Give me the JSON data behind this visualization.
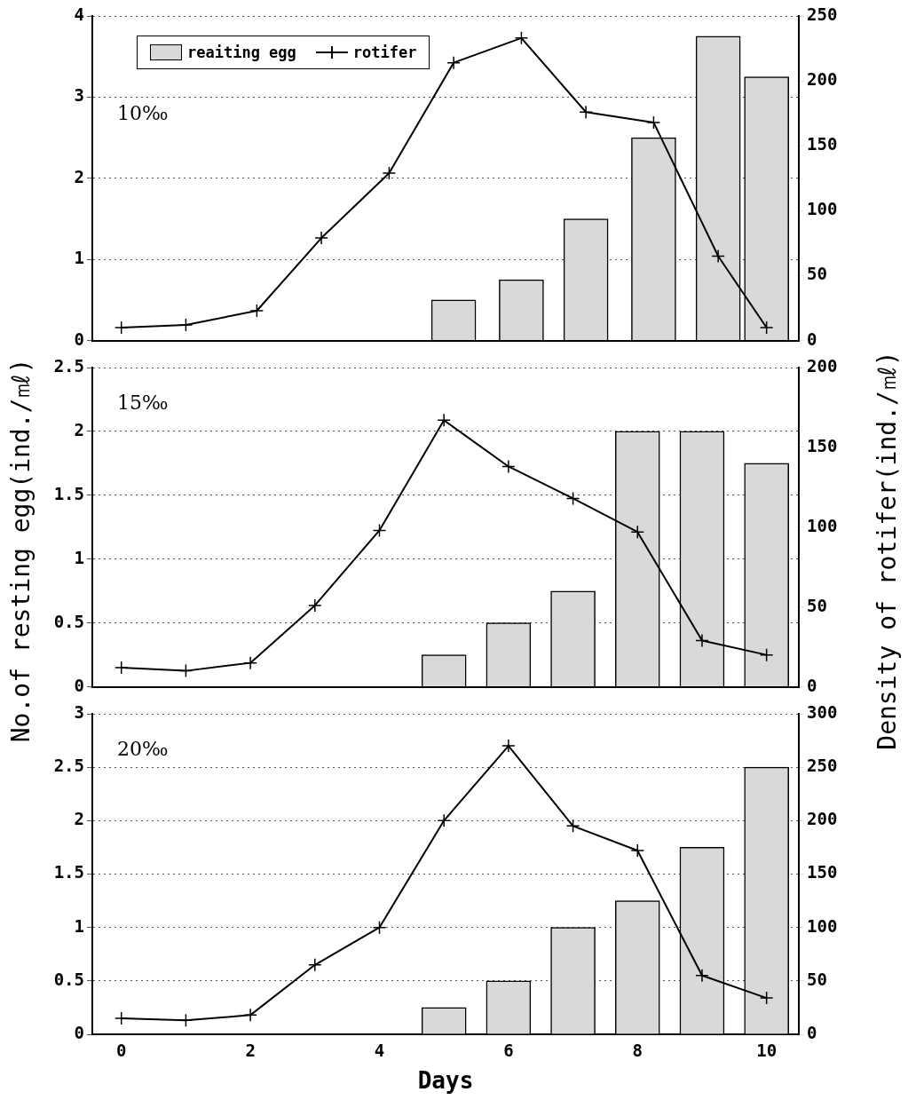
{
  "chart_data": [
    {
      "type": "bar",
      "ylabel": "No.of resting egg(ind./㎖)",
      "y2label": "Density of rotifer(ind./㎖)",
      "xlim": [
        -0.45,
        10.5
      ],
      "xticks": [
        0,
        2,
        4,
        6,
        8,
        10
      ],
      "ylim": [
        0,
        4
      ],
      "yticks": [
        0,
        1,
        2,
        3,
        4
      ],
      "y2lim": [
        0,
        250
      ],
      "y2ticks": [
        0,
        50,
        100,
        150,
        200,
        250
      ],
      "tick_labels": "y",
      "grid": "y",
      "legend": "top left",
      "marker": "cross",
      "line_style": "solid",
      "annotations": [
        "10‰"
      ],
      "series": [
        {
          "name": "reaiting egg",
          "color": "#d9d9d9",
          "x": [
            5.15,
            6.2,
            7.2,
            8.25,
            9.25,
            10
          ],
          "values": [
            0.5,
            0.75,
            1.5,
            2.5,
            3.75,
            3.25
          ]
        },
        {
          "name": "rotifer",
          "type": "line",
          "axis": "y2",
          "color": "#000000",
          "x": [
            0,
            1,
            2.1,
            3.1,
            4.15,
            5.15,
            6.2,
            7.2,
            8.25,
            9.25,
            10
          ],
          "values": [
            10,
            12,
            23,
            79,
            129,
            214,
            233,
            176,
            168,
            65,
            10
          ]
        }
      ]
    },
    {
      "type": "bar",
      "xlim": [
        -0.45,
        10.5
      ],
      "xticks": [
        0,
        2,
        4,
        6,
        8,
        10
      ],
      "ylim": [
        0,
        2.5
      ],
      "yticks": [
        0,
        0.5,
        1,
        1.5,
        2,
        2.5
      ],
      "y2lim": [
        0,
        200
      ],
      "y2ticks": [
        0,
        50,
        100,
        150,
        200
      ],
      "tick_labels": "y",
      "grid": "y",
      "marker": "cross",
      "line_style": "solid",
      "annotations": [
        "15‰"
      ],
      "series": [
        {
          "color": "#d9d9d9",
          "x": [
            5,
            6,
            7,
            8,
            9,
            10
          ],
          "values": [
            0.25,
            0.5,
            0.75,
            2,
            2,
            1.75
          ]
        },
        {
          "type": "line",
          "axis": "y2",
          "color": "#000000",
          "x": [
            0,
            1,
            2,
            3,
            4,
            5,
            6,
            7,
            8,
            9,
            10
          ],
          "values": [
            12,
            10,
            15,
            51,
            98,
            167,
            138,
            118,
            97,
            29,
            20
          ]
        }
      ]
    },
    {
      "type": "bar",
      "xlabel": "Days",
      "xlim": [
        -0.45,
        10.5
      ],
      "xticks": [
        0,
        2,
        4,
        6,
        8,
        10
      ],
      "ylim": [
        0,
        3
      ],
      "yticks": [
        0,
        0.5,
        1,
        1.5,
        2,
        2.5,
        3
      ],
      "y2lim": [
        0,
        300
      ],
      "y2ticks": [
        0,
        50,
        100,
        150,
        200,
        250,
        300
      ],
      "grid": "y",
      "marker": "cross",
      "line_style": "solid",
      "annotations": [
        "20‰"
      ],
      "series": [
        {
          "color": "#d9d9d9",
          "x": [
            5,
            6,
            7,
            8,
            9,
            10
          ],
          "values": [
            0.25,
            0.5,
            1,
            1.25,
            1.75,
            2.5
          ]
        },
        {
          "type": "line",
          "axis": "y2",
          "color": "#000000",
          "x": [
            0,
            1,
            2,
            3,
            4,
            5,
            6,
            7,
            8,
            9,
            10
          ],
          "values": [
            15,
            13,
            18,
            65,
            100,
            200,
            270,
            195,
            172,
            55,
            34
          ]
        }
      ]
    }
  ]
}
